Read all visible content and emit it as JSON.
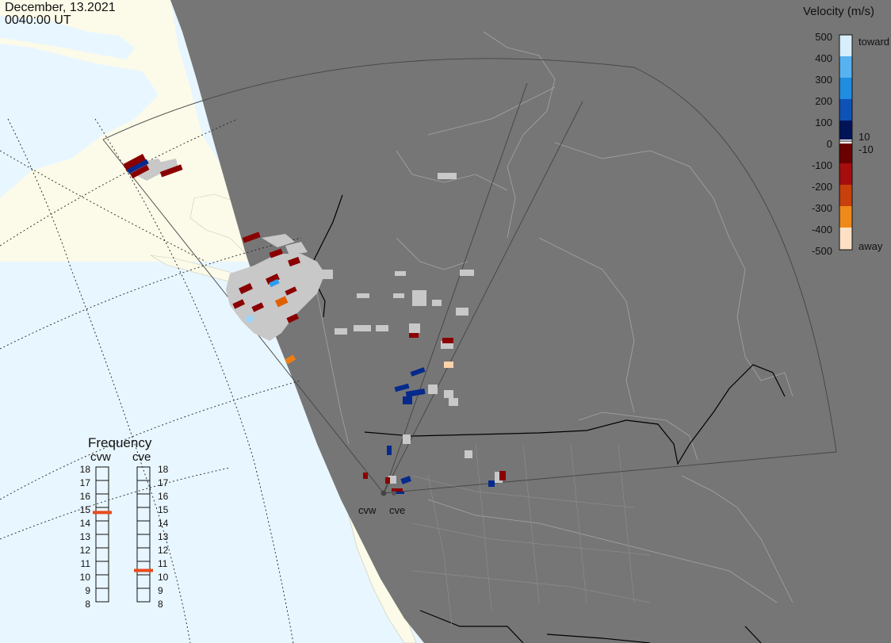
{
  "header": {
    "date": "December, 13.2021",
    "time": "0040:00 UT"
  },
  "legend": {
    "title": "Velocity (m/s)",
    "ticks": [
      "500",
      "400",
      "300",
      "200",
      "100",
      "0",
      "-100",
      "-200",
      "-300",
      "-400",
      "-500"
    ],
    "side_labels": {
      "toward": "toward",
      "small_pos": "10",
      "small_neg": "-10",
      "away": "away"
    },
    "colors": {
      "toward_range": [
        "#d7eefc",
        "#9fd4f7",
        "#58b2f0",
        "#1f8de0",
        "#0e63c4",
        "#0a40a0",
        "#052a78",
        "#020f4e"
      ],
      "neutral": "#ffffff",
      "away_range": [
        "#3a0000",
        "#6a0000",
        "#9a0a0a",
        "#b31b1b",
        "#c8400b",
        "#e06a10",
        "#f39a2a",
        "#fbcba0",
        "#fde3cc"
      ]
    }
  },
  "frequency": {
    "title": "Frequency",
    "radars": [
      {
        "name": "cvw",
        "value_mhz": 14.8
      },
      {
        "name": "cve",
        "value_mhz": 10.5
      }
    ],
    "scale": [
      "18",
      "17",
      "16",
      "15",
      "14",
      "13",
      "12",
      "11",
      "10",
      "9",
      "8"
    ]
  },
  "sites": [
    {
      "name": "cvw"
    },
    {
      "name": "cve"
    }
  ],
  "map_colors": {
    "ocean": "#e8f6ff",
    "land_lit": "#fcfbe9",
    "night": "#767676",
    "coast_in_night": "#a5a5a5",
    "scatter_gray": "#c8c8c8",
    "border": "#000000"
  }
}
